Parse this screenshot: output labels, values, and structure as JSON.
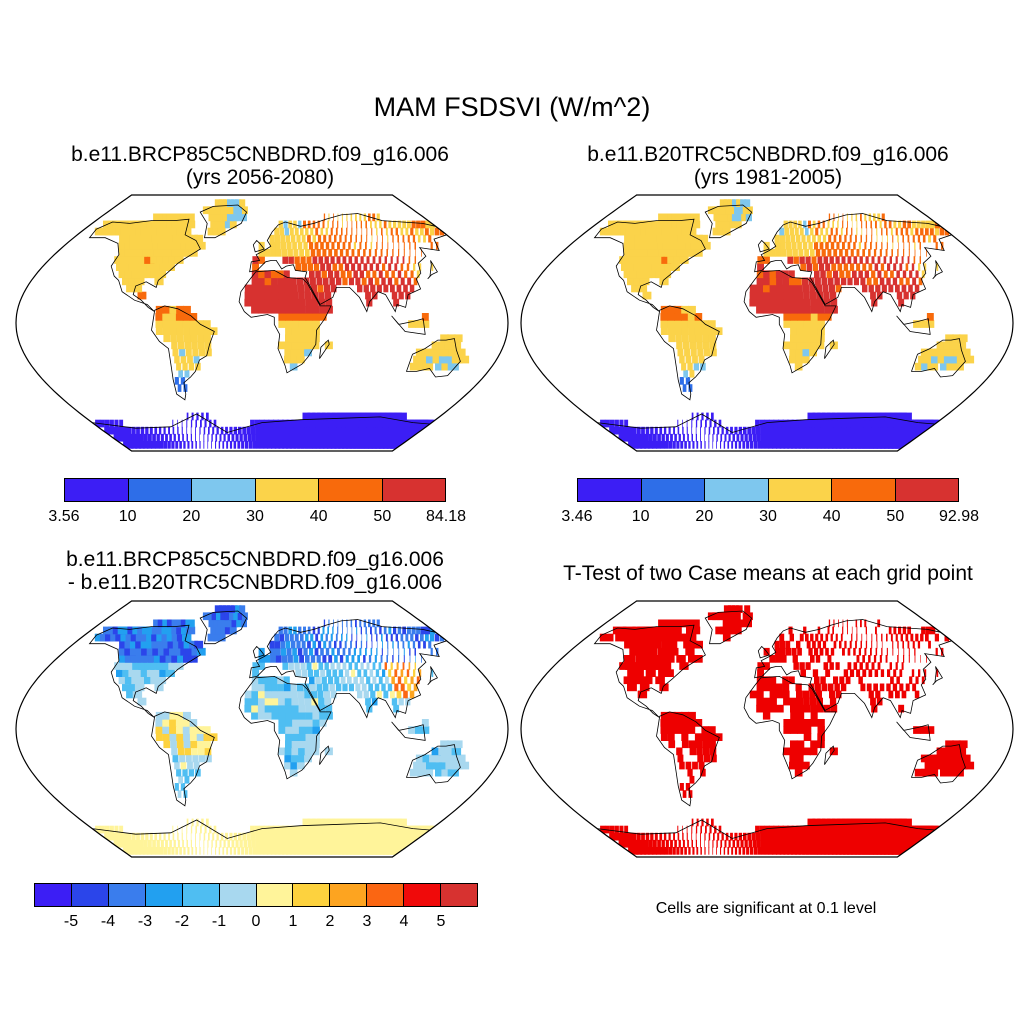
{
  "main_title": "MAM FSDSVI (W/m^2)",
  "panels": [
    {
      "title_line1": "b.e11.BRCP85C5CNBDRD.f09_g16.006",
      "title_line2": "(yrs 2056-2080)",
      "colorbar": {
        "colors": [
          "#3c1ef5",
          "#2e6ee8",
          "#7ec7ee",
          "#fbd34a",
          "#f86a0c",
          "#d73230"
        ],
        "labels": [
          "3.56",
          "10",
          "20",
          "30",
          "40",
          "50",
          "84.18"
        ]
      }
    },
    {
      "title_line1": "b.e11.B20TRC5CNBDRD.f09_g16.006",
      "title_line2": "(yrs 1981-2005)",
      "colorbar": {
        "colors": [
          "#3c1ef5",
          "#2e6ee8",
          "#7ec7ee",
          "#fbd34a",
          "#f86a0c",
          "#d73230"
        ],
        "labels": [
          "3.46",
          "10",
          "20",
          "30",
          "40",
          "50",
          "92.98"
        ]
      }
    },
    {
      "title_line1": "b.e11.BRCP85C5CNBDRD.f09_g16.006",
      "title_line2": "- b.e11.B20TRC5CNBDRD.f09_g16.006",
      "colorbar": {
        "colors": [
          "#3c1ef5",
          "#2b45ea",
          "#3a7ded",
          "#22a0f0",
          "#4fbef2",
          "#a8d8ef",
          "#fff49a",
          "#fdd23e",
          "#fda420",
          "#fb6612",
          "#f00a0a",
          "#d73230"
        ],
        "labels": [
          "-5",
          "-4",
          "-3",
          "-2",
          "-1",
          "0",
          "1",
          "2",
          "3",
          "4",
          "5"
        ]
      }
    },
    {
      "title_line1": "T-Test of two Case means at each grid point",
      "note": "Cells are significant at 0.1 level",
      "sig_color": "#ee0000"
    }
  ]
}
